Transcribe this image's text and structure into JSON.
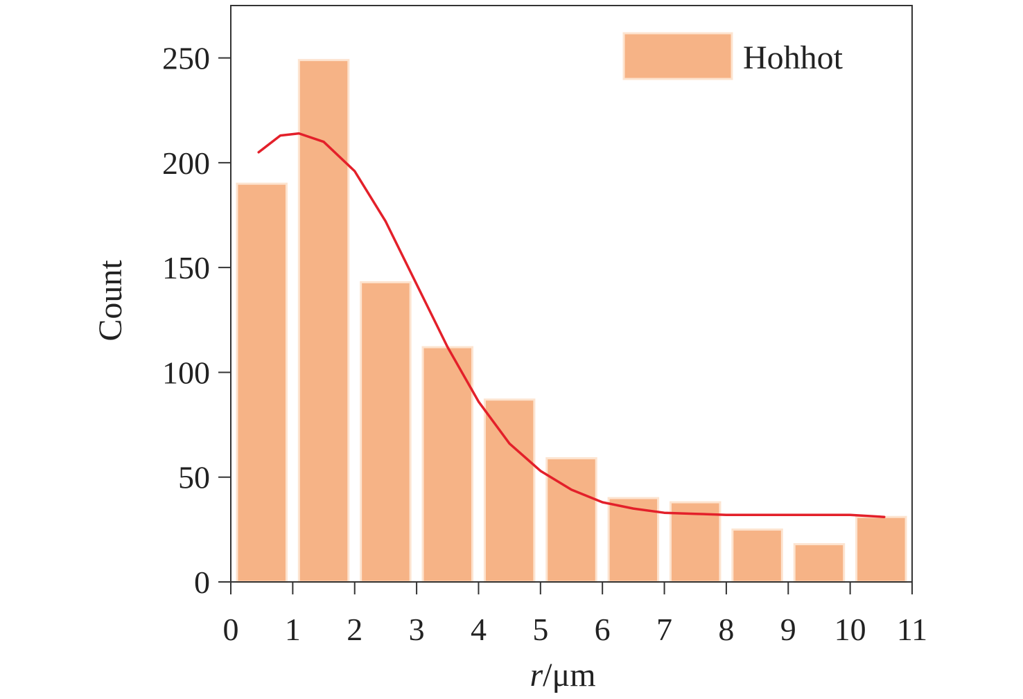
{
  "chart_data": {
    "type": "bar",
    "bars": [
      {
        "x": 0.5,
        "value": 190
      },
      {
        "x": 1.5,
        "value": 249
      },
      {
        "x": 2.5,
        "value": 143
      },
      {
        "x": 3.5,
        "value": 112
      },
      {
        "x": 4.5,
        "value": 87
      },
      {
        "x": 5.5,
        "value": 59
      },
      {
        "x": 6.5,
        "value": 40
      },
      {
        "x": 7.5,
        "value": 38
      },
      {
        "x": 8.5,
        "value": 25
      },
      {
        "x": 9.5,
        "value": 18
      },
      {
        "x": 10.5,
        "value": 31
      }
    ],
    "fit_curve": {
      "x": [
        0.45,
        0.8,
        1.1,
        1.5,
        2.0,
        2.5,
        3.0,
        3.5,
        4.0,
        4.5,
        5.0,
        5.5,
        6.0,
        6.5,
        7.0,
        7.5,
        8.0,
        9.0,
        10.0,
        10.55
      ],
      "y": [
        205,
        213,
        214,
        210,
        196,
        172,
        142,
        112,
        86,
        66,
        53,
        44,
        38,
        35,
        33,
        32.5,
        32,
        32,
        32,
        31
      ]
    },
    "xlabel_var": "r",
    "xlabel_unit": "/μm",
    "ylabel": "Count",
    "xlim": [
      0,
      11
    ],
    "ylim": [
      0,
      250
    ],
    "ylim_display_max": 275,
    "xticks": [
      "0",
      "1",
      "2",
      "3",
      "4",
      "5",
      "6",
      "7",
      "8",
      "9",
      "10",
      "11"
    ],
    "yticks": [
      "0",
      "50",
      "100",
      "150",
      "200",
      "250"
    ],
    "legend": {
      "label": "Hohhot",
      "position": "top-right"
    },
    "colors": {
      "bar": "#f6b386",
      "bar_edge": "#fde4d0",
      "curve": "#e3202a",
      "axis": "#333333"
    },
    "grid": false
  }
}
